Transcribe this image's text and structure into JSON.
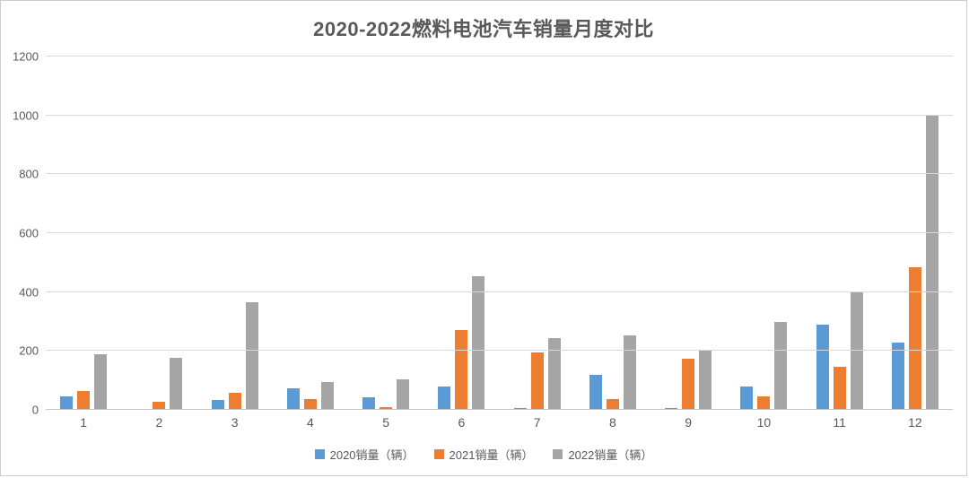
{
  "page": {
    "background": "#ffffff",
    "border_color": "#cccccc"
  },
  "chart_data": {
    "type": "bar",
    "title": "2020-2022燃料电池汽车销量月度对比",
    "categories": [
      "1",
      "2",
      "3",
      "4",
      "5",
      "6",
      "7",
      "8",
      "9",
      "10",
      "11",
      "12"
    ],
    "series": [
      {
        "name": "2020销量（辆）",
        "color": "#5B9BD5",
        "values": [
          45,
          0,
          35,
          72,
          43,
          80,
          5,
          120,
          5,
          80,
          290,
          228
        ]
      },
      {
        "name": "2021销量（辆）",
        "color": "#ED7D31",
        "values": [
          63,
          28,
          58,
          38,
          10,
          270,
          196,
          38,
          173,
          46,
          145,
          485
        ]
      },
      {
        "name": "2022销量（辆）",
        "color": "#A5A5A5",
        "values": [
          190,
          178,
          365,
          93,
          103,
          453,
          245,
          253,
          200,
          300,
          402,
          1000
        ]
      }
    ],
    "xlabel": "",
    "ylabel": "",
    "ylim": [
      0,
      1200
    ],
    "yticks": [
      0,
      200,
      400,
      600,
      800,
      1000,
      1200
    ],
    "grid": true,
    "gridline_color": "#d9d9d9",
    "axis_text_color": "#595959",
    "title_color": "#595959",
    "legend_position": "bottom"
  }
}
